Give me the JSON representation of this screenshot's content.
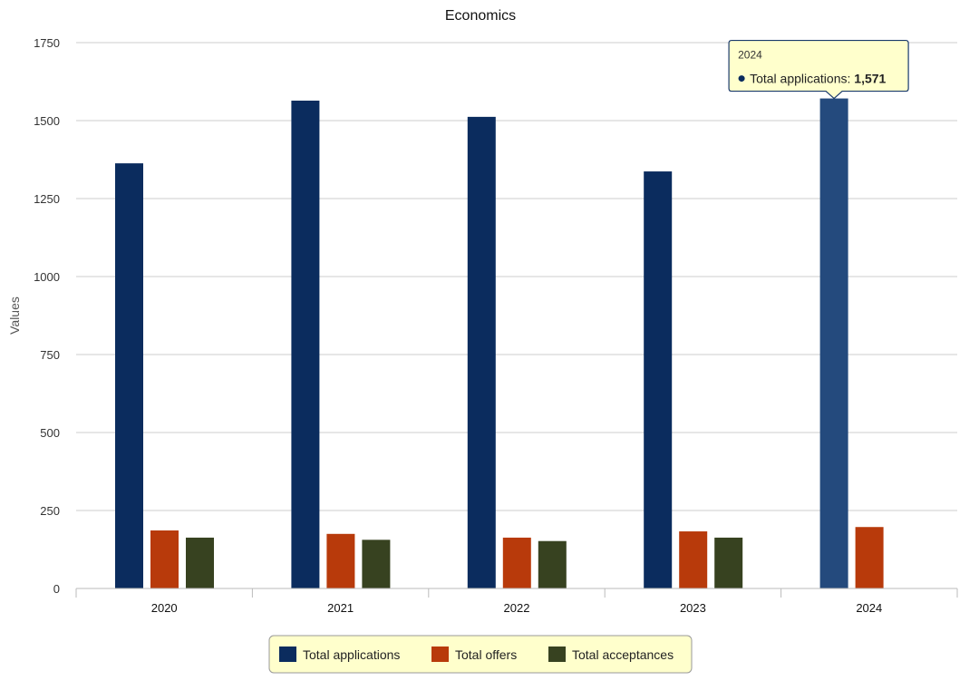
{
  "chart_data": {
    "type": "bar",
    "title": "Economics",
    "xlabel": "",
    "ylabel": "Values",
    "ylim": [
      0,
      1750
    ],
    "yticks": [
      0,
      250,
      500,
      750,
      1000,
      1250,
      1500,
      1750
    ],
    "categories": [
      "2020",
      "2021",
      "2022",
      "2023",
      "2024"
    ],
    "series": [
      {
        "name": "Total applications",
        "color": "#0b2c5e",
        "values": [
          1363,
          1564,
          1512,
          1337,
          1571
        ]
      },
      {
        "name": "Total offers",
        "color": "#b83a0b",
        "values": [
          186,
          175,
          163,
          183,
          197
        ]
      },
      {
        "name": "Total acceptances",
        "color": "#374220",
        "values": [
          163,
          156,
          152,
          163,
          null
        ]
      }
    ],
    "grid": true,
    "legend_position": "bottom",
    "tooltip": {
      "category": "2024",
      "series": "Total applications",
      "value_text": "1,571",
      "highlight_color": "#244a7d",
      "background": "#ffffcc",
      "border": "#1a3a6b"
    },
    "legend": {
      "background": "#ffffcc",
      "border": "#999999"
    }
  }
}
